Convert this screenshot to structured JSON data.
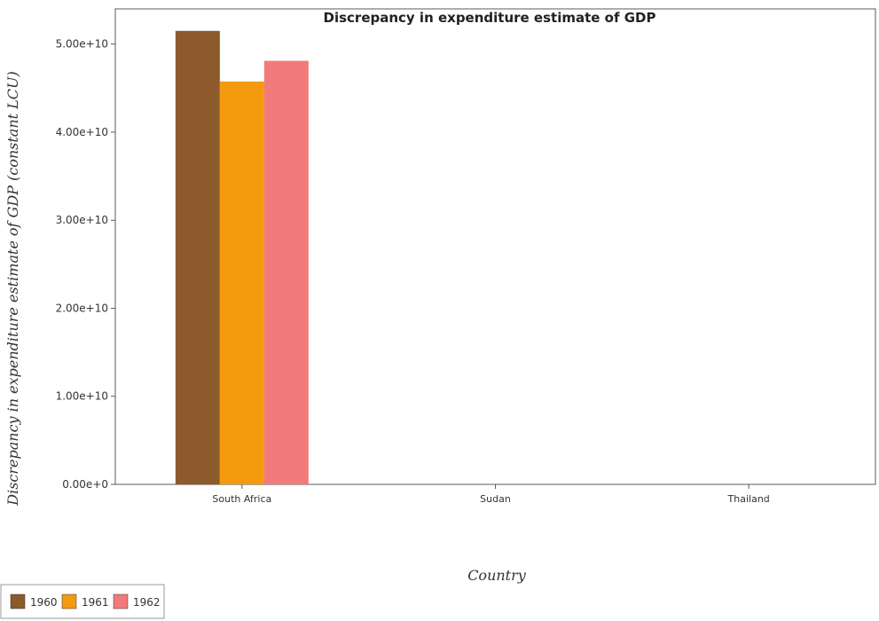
{
  "chart_data": {
    "type": "bar",
    "title": "Discrepancy in expenditure estimate of GDP",
    "xlabel": "Country",
    "ylabel": "Discrepancy in expenditure estimate of GDP (constant LCU)",
    "categories": [
      "South Africa",
      "Sudan",
      "Thailand"
    ],
    "series": [
      {
        "name": "1960",
        "color": "#8c5a2b",
        "values": [
          51500000000,
          0,
          0
        ]
      },
      {
        "name": "1961",
        "color": "#f39a0f",
        "values": [
          45750000000,
          0,
          0
        ]
      },
      {
        "name": "1962",
        "color": "#f27a7a",
        "values": [
          48100000000,
          0,
          0
        ]
      }
    ],
    "ylim": [
      0,
      54000000000
    ],
    "yticks": [
      0,
      10000000000,
      20000000000,
      30000000000,
      40000000000,
      50000000000
    ],
    "ytick_labels": [
      "0.00e+0",
      "1.00e+10",
      "2.00e+10",
      "3.00e+10",
      "4.00e+10",
      "5.00e+10"
    ],
    "grid": false,
    "legend_position": "bottom-left"
  }
}
